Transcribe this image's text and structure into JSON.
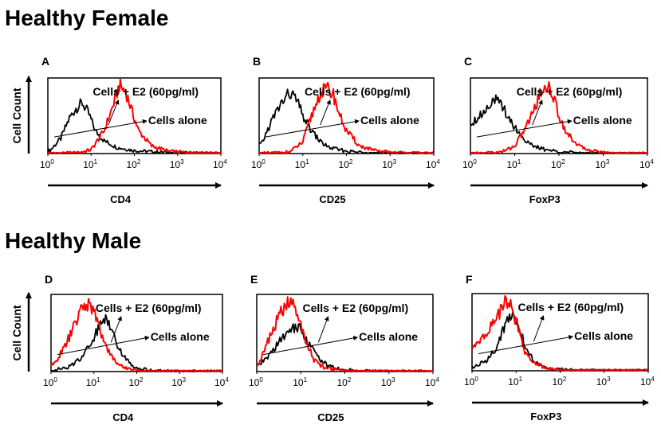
{
  "sections": [
    {
      "title": "Healthy Female"
    },
    {
      "title": "Healthy Male"
    }
  ],
  "chart_data": [
    {
      "panel": "A",
      "type": "line",
      "xscale": "log",
      "xlim": [
        1,
        10000
      ],
      "tick_labels": [
        "0",
        "1",
        "2",
        "3",
        "4"
      ],
      "tick_base": "10",
      "xlabel": "CD4",
      "ylabel": "Cell Count",
      "annotations": [
        "Cells + E2 (60pg/ml)",
        "Cells alone"
      ],
      "series": [
        {
          "name": "Cells alone",
          "color": "#000000",
          "log10_x": [
            0.05,
            0.3,
            0.5,
            0.65,
            0.8,
            0.95,
            1.1,
            1.3,
            1.6,
            2.0,
            2.5,
            3.2,
            3.9
          ],
          "y": [
            0.04,
            0.2,
            0.47,
            0.6,
            0.67,
            0.52,
            0.3,
            0.17,
            0.08,
            0.04,
            0.02,
            0.01,
            0.0
          ]
        },
        {
          "name": "Cells + E2 (60pg/ml)",
          "color": "#ff0000",
          "log10_x": [
            0.05,
            0.7,
            1.0,
            1.3,
            1.5,
            1.65,
            1.8,
            1.95,
            2.1,
            2.4,
            2.8,
            3.3,
            3.9
          ],
          "y": [
            0.0,
            0.01,
            0.05,
            0.3,
            0.62,
            0.9,
            0.82,
            0.55,
            0.3,
            0.1,
            0.03,
            0.01,
            0.0
          ]
        }
      ]
    },
    {
      "panel": "B",
      "type": "line",
      "xscale": "log",
      "xlim": [
        1,
        10000
      ],
      "tick_labels": [
        "0",
        "1",
        "2",
        "3",
        "4"
      ],
      "tick_base": "10",
      "xlabel": "CD25",
      "ylabel": "",
      "annotations": [
        "Cells + E2 (60pg/ml)",
        "Cells alone"
      ],
      "series": [
        {
          "name": "Cells alone",
          "color": "#000000",
          "log10_x": [
            0.05,
            0.3,
            0.5,
            0.7,
            0.85,
            1.0,
            1.2,
            1.4,
            1.6,
            2.0,
            2.5,
            3.2,
            3.9
          ],
          "y": [
            0.12,
            0.45,
            0.66,
            0.8,
            0.72,
            0.5,
            0.3,
            0.16,
            0.08,
            0.03,
            0.01,
            0.0,
            0.0
          ]
        },
        {
          "name": "Cells + E2 (60pg/ml)",
          "color": "#ff0000",
          "log10_x": [
            0.05,
            0.7,
            1.0,
            1.2,
            1.4,
            1.55,
            1.7,
            1.85,
            2.0,
            2.3,
            2.7,
            3.3,
            3.9
          ],
          "y": [
            0.0,
            0.02,
            0.15,
            0.5,
            0.8,
            0.86,
            0.78,
            0.5,
            0.3,
            0.1,
            0.03,
            0.01,
            0.0
          ]
        }
      ]
    },
    {
      "panel": "C",
      "type": "line",
      "xscale": "log",
      "xlim": [
        1,
        10000
      ],
      "tick_labels": [
        "0",
        "1",
        "2",
        "3",
        "4"
      ],
      "tick_base": "10",
      "xlabel": "FoxP3",
      "ylabel": "",
      "annotations": [
        "Cells + E2 (60pg/ml)",
        "Cells alone"
      ],
      "series": [
        {
          "name": "Cells alone",
          "color": "#000000",
          "log10_x": [
            0.05,
            0.3,
            0.5,
            0.65,
            0.8,
            1.0,
            1.2,
            1.4,
            1.7,
            2.1,
            2.6,
            3.2,
            3.9
          ],
          "y": [
            0.42,
            0.55,
            0.72,
            0.67,
            0.55,
            0.35,
            0.2,
            0.1,
            0.05,
            0.02,
            0.0,
            0.0,
            0.0
          ]
        },
        {
          "name": "Cells + E2 (60pg/ml)",
          "color": "#ff0000",
          "log10_x": [
            0.05,
            0.7,
            1.0,
            1.3,
            1.55,
            1.7,
            1.85,
            2.0,
            2.2,
            2.5,
            2.9,
            3.3,
            3.9
          ],
          "y": [
            0.0,
            0.02,
            0.1,
            0.4,
            0.75,
            0.92,
            0.8,
            0.5,
            0.25,
            0.08,
            0.02,
            0.0,
            0.0
          ]
        }
      ]
    },
    {
      "panel": "D",
      "type": "line",
      "xscale": "log",
      "xlim": [
        1,
        10000
      ],
      "tick_labels": [
        "0",
        "1",
        "2",
        "3",
        "4"
      ],
      "tick_base": "10",
      "xlabel": "CD4",
      "ylabel": "Cell Count",
      "annotations": [
        "Cells + E2 (60pg/ml)",
        "Cells alone"
      ],
      "series": [
        {
          "name": "Cells alone",
          "color": "#000000",
          "log10_x": [
            0.05,
            0.4,
            0.7,
            0.9,
            1.1,
            1.25,
            1.4,
            1.55,
            1.75,
            2.0,
            2.4,
            3.0,
            3.9
          ],
          "y": [
            0.02,
            0.05,
            0.18,
            0.35,
            0.55,
            0.7,
            0.6,
            0.35,
            0.15,
            0.05,
            0.01,
            0.0,
            0.0
          ]
        },
        {
          "name": "Cells + E2 (60pg/ml)",
          "color": "#ff0000",
          "log10_x": [
            0.05,
            0.3,
            0.55,
            0.75,
            0.9,
            1.05,
            1.2,
            1.4,
            1.6,
            1.9,
            2.3,
            3.0,
            3.9
          ],
          "y": [
            0.08,
            0.3,
            0.6,
            0.85,
            0.88,
            0.7,
            0.45,
            0.2,
            0.08,
            0.02,
            0.0,
            0.0,
            0.0
          ]
        }
      ]
    },
    {
      "panel": "E",
      "type": "line",
      "xscale": "log",
      "xlim": [
        1,
        10000
      ],
      "tick_labels": [
        "0",
        "1",
        "2",
        "3",
        "4"
      ],
      "tick_base": "10",
      "xlabel": "CD25",
      "ylabel": "",
      "annotations": [
        "Cells + E2 (60pg/ml)",
        "Cells alone"
      ],
      "series": [
        {
          "name": "Cells alone",
          "color": "#000000",
          "log10_x": [
            0.05,
            0.3,
            0.55,
            0.75,
            0.9,
            1.05,
            1.2,
            1.4,
            1.6,
            1.9,
            2.3,
            3.0,
            3.9
          ],
          "y": [
            0.08,
            0.22,
            0.42,
            0.52,
            0.6,
            0.5,
            0.35,
            0.18,
            0.08,
            0.03,
            0.01,
            0.0,
            0.0
          ]
        },
        {
          "name": "Cells + E2 (60pg/ml)",
          "color": "#ff0000",
          "log10_x": [
            0.05,
            0.3,
            0.5,
            0.7,
            0.85,
            1.0,
            1.15,
            1.3,
            1.5,
            1.8,
            2.2,
            3.0,
            3.9
          ],
          "y": [
            0.1,
            0.45,
            0.72,
            0.88,
            0.86,
            0.6,
            0.35,
            0.15,
            0.06,
            0.02,
            0.0,
            0.0,
            0.0
          ]
        }
      ]
    },
    {
      "panel": "F",
      "type": "line",
      "xscale": "log",
      "xlim": [
        1,
        10000
      ],
      "tick_labels": [
        "0",
        "1",
        "2",
        "3",
        "4"
      ],
      "tick_base": "10",
      "xlabel": "FoxP3",
      "ylabel": "",
      "annotations": [
        "Cells + E2 (60pg/ml)",
        "Cells alone"
      ],
      "series": [
        {
          "name": "Cells alone",
          "color": "#000000",
          "log10_x": [
            0.05,
            0.3,
            0.5,
            0.65,
            0.8,
            0.95,
            1.1,
            1.25,
            1.45,
            1.7,
            2.1,
            2.8,
            3.9
          ],
          "y": [
            0.05,
            0.12,
            0.25,
            0.45,
            0.65,
            0.72,
            0.5,
            0.25,
            0.1,
            0.03,
            0.01,
            0.0,
            0.0
          ]
        },
        {
          "name": "Cells + E2 (60pg/ml)",
          "color": "#ff0000",
          "log10_x": [
            0.05,
            0.2,
            0.4,
            0.6,
            0.75,
            0.9,
            1.05,
            1.2,
            1.4,
            1.7,
            2.1,
            2.8,
            3.9
          ],
          "y": [
            0.3,
            0.4,
            0.55,
            0.72,
            0.88,
            0.82,
            0.55,
            0.25,
            0.1,
            0.03,
            0.0,
            0.0,
            0.0
          ]
        }
      ]
    }
  ]
}
